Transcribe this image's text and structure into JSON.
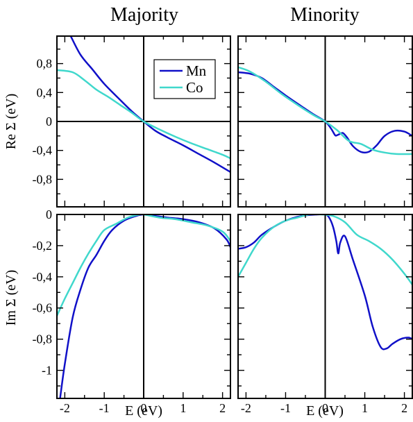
{
  "colors": {
    "mn": "#1010c8",
    "co": "#40d8cc",
    "axis": "#000000"
  },
  "column_titles": [
    "Majority",
    "Minority"
  ],
  "legend": {
    "entries": [
      {
        "label": "Mn",
        "color": "#1010c8"
      },
      {
        "label": "Co",
        "color": "#40d8cc"
      }
    ]
  },
  "x_label": "E (eV)",
  "re_ylabel": "Re Σ (eV)",
  "im_ylabel": "Im Σ (eV)",
  "chart_data": [
    {
      "type": "line",
      "title": "Majority",
      "xlabel": "",
      "ylabel": "Re Σ (eV)",
      "xlim": [
        -2.2,
        2.2
      ],
      "ylim": [
        -1.18,
        1.18
      ],
      "x_ticks": [
        -2,
        -1,
        0,
        1,
        2
      ],
      "y_ticks": [
        -0.8,
        -0.4,
        0,
        0.4,
        0.8
      ],
      "y_tick_labels": [
        "-0,8",
        "-0,4",
        "0",
        "0,4",
        "0,8"
      ],
      "show_x_ticklabels": false,
      "series": [
        {
          "name": "Mn",
          "x": [
            -1.85,
            -1.6,
            -1.3,
            -1.0,
            -0.6,
            -0.3,
            0.0,
            0.3,
            0.6,
            1.0,
            1.4,
            1.8,
            2.2
          ],
          "y": [
            1.18,
            0.92,
            0.72,
            0.52,
            0.3,
            0.14,
            0.0,
            -0.13,
            -0.22,
            -0.33,
            -0.45,
            -0.57,
            -0.7
          ]
        },
        {
          "name": "Co",
          "x": [
            -2.2,
            -1.8,
            -1.5,
            -1.2,
            -0.9,
            -0.6,
            -0.3,
            0.0,
            0.4,
            0.8,
            1.2,
            1.6,
            2.0,
            2.2
          ],
          "y": [
            0.71,
            0.68,
            0.57,
            0.44,
            0.34,
            0.23,
            0.12,
            0.0,
            -0.11,
            -0.21,
            -0.3,
            -0.38,
            -0.46,
            -0.51
          ]
        }
      ]
    },
    {
      "type": "line",
      "title": "Minority",
      "xlabel": "",
      "ylabel": "",
      "xlim": [
        -2.2,
        2.2
      ],
      "ylim": [
        -1.18,
        1.18
      ],
      "x_ticks": [
        -2,
        -1,
        0,
        1,
        2
      ],
      "y_ticks": [
        -0.8,
        -0.4,
        0,
        0.4,
        0.8
      ],
      "show_x_ticklabels": false,
      "series": [
        {
          "name": "Mn",
          "x": [
            -2.2,
            -1.9,
            -1.6,
            -1.3,
            -1.0,
            -0.6,
            -0.3,
            0.0,
            0.15,
            0.25,
            0.3,
            0.38,
            0.45,
            0.55,
            0.7,
            0.9,
            1.1,
            1.3,
            1.5,
            1.75,
            2.0,
            2.2
          ],
          "y": [
            0.68,
            0.66,
            0.6,
            0.48,
            0.36,
            0.21,
            0.1,
            0.0,
            -0.1,
            -0.19,
            -0.19,
            -0.17,
            -0.16,
            -0.22,
            -0.34,
            -0.42,
            -0.42,
            -0.33,
            -0.2,
            -0.13,
            -0.14,
            -0.2
          ]
        },
        {
          "name": "Co",
          "x": [
            -2.2,
            -1.9,
            -1.5,
            -1.1,
            -0.7,
            -0.3,
            0.0,
            0.3,
            0.6,
            0.9,
            1.2,
            1.5,
            1.8,
            2.2
          ],
          "y": [
            0.75,
            0.69,
            0.55,
            0.38,
            0.23,
            0.09,
            0.0,
            -0.12,
            -0.27,
            -0.31,
            -0.39,
            -0.43,
            -0.45,
            -0.45
          ]
        }
      ]
    },
    {
      "type": "line",
      "title": "",
      "xlabel": "E (eV)",
      "ylabel": "Im Σ (eV)",
      "xlim": [
        -2.2,
        2.2
      ],
      "ylim": [
        -1.18,
        0.0
      ],
      "x_ticks": [
        -2,
        -1,
        0,
        1,
        2
      ],
      "y_ticks": [
        -1.0,
        -0.8,
        -0.6,
        -0.4,
        -0.2,
        0
      ],
      "y_tick_labels": [
        "-1",
        "-0,8",
        "-0,6",
        "-0,4",
        "-0,2",
        "0"
      ],
      "show_x_ticklabels": true,
      "series": [
        {
          "name": "Mn",
          "x": [
            -2.12,
            -2.0,
            -1.8,
            -1.6,
            -1.4,
            -1.2,
            -1.0,
            -0.8,
            -0.5,
            -0.2,
            0.0,
            0.3,
            0.6,
            1.0,
            1.4,
            1.8,
            2.1,
            2.2
          ],
          "y": [
            -1.18,
            -0.96,
            -0.66,
            -0.48,
            -0.34,
            -0.26,
            -0.17,
            -0.1,
            -0.04,
            -0.01,
            0.0,
            -0.01,
            -0.02,
            -0.03,
            -0.05,
            -0.09,
            -0.16,
            -0.21
          ]
        },
        {
          "name": "Co",
          "x": [
            -2.2,
            -2.0,
            -1.8,
            -1.6,
            -1.4,
            -1.2,
            -1.0,
            -0.7,
            -0.4,
            -0.1,
            0.0,
            0.4,
            0.8,
            1.2,
            1.6,
            2.0,
            2.2
          ],
          "y": [
            -0.65,
            -0.54,
            -0.44,
            -0.34,
            -0.25,
            -0.17,
            -0.1,
            -0.06,
            -0.02,
            0.0,
            0.0,
            -0.02,
            -0.03,
            -0.05,
            -0.07,
            -0.11,
            -0.17
          ]
        }
      ]
    },
    {
      "type": "line",
      "title": "",
      "xlabel": "E (eV)",
      "ylabel": "",
      "xlim": [
        -2.2,
        2.2
      ],
      "ylim": [
        -1.18,
        0.0
      ],
      "x_ticks": [
        -2,
        -1,
        0,
        1,
        2
      ],
      "y_ticks": [
        -1.0,
        -0.8,
        -0.6,
        -0.4,
        -0.2,
        0
      ],
      "show_x_ticklabels": true,
      "series": [
        {
          "name": "Mn",
          "x": [
            -2.2,
            -2.0,
            -1.8,
            -1.6,
            -1.3,
            -1.0,
            -0.6,
            -0.2,
            0.0,
            0.1,
            0.2,
            0.28,
            0.33,
            0.38,
            0.5,
            0.7,
            1.0,
            1.2,
            1.4,
            1.55,
            1.7,
            1.9,
            2.1,
            2.2
          ],
          "y": [
            -0.22,
            -0.21,
            -0.18,
            -0.13,
            -0.08,
            -0.04,
            -0.01,
            0.0,
            0.0,
            -0.02,
            -0.08,
            -0.17,
            -0.25,
            -0.18,
            -0.14,
            -0.29,
            -0.52,
            -0.72,
            -0.85,
            -0.86,
            -0.83,
            -0.8,
            -0.79,
            -0.8
          ]
        },
        {
          "name": "Co",
          "x": [
            -2.2,
            -2.0,
            -1.8,
            -1.6,
            -1.3,
            -1.0,
            -0.7,
            -0.4,
            -0.1,
            0.2,
            0.5,
            0.8,
            1.1,
            1.4,
            1.7,
            2.0,
            2.2
          ],
          "y": [
            -0.4,
            -0.31,
            -0.22,
            -0.15,
            -0.08,
            -0.04,
            -0.02,
            0.0,
            0.0,
            -0.01,
            -0.05,
            -0.13,
            -0.17,
            -0.22,
            -0.29,
            -0.38,
            -0.45
          ]
        }
      ]
    }
  ]
}
